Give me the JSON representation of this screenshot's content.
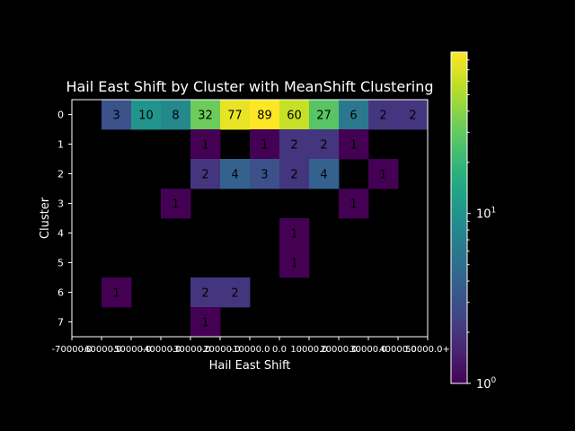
{
  "chart_data": {
    "type": "heatmap",
    "title": "Hail East Shift by Cluster with MeanShift Clustering",
    "xlabel": "Hail East Shift",
    "ylabel": "Cluster",
    "x_tick_labels": [
      "-70000.0",
      "-60000.0",
      "-50000.0",
      "-40000.0",
      "-30000.0",
      "-20000.0",
      "-10000.0",
      "0.0",
      "10000.0",
      "20000.0",
      "30000.0",
      "40000.0",
      "50000.0+"
    ],
    "y_tick_labels": [
      "0",
      "1",
      "2",
      "3",
      "4",
      "5",
      "6",
      "7"
    ],
    "colorbar": {
      "scale": "log",
      "min": 1,
      "max": 89,
      "colormap": "viridis",
      "tick_labels": [
        "10^0",
        "10^1"
      ]
    },
    "annotation_color": "#000000",
    "values": [
      [
        null,
        3,
        10,
        8,
        32,
        77,
        89,
        60,
        27,
        6,
        2,
        2
      ],
      [
        null,
        null,
        null,
        null,
        1,
        null,
        1,
        2,
        2,
        1,
        null,
        null
      ],
      [
        null,
        null,
        null,
        null,
        2,
        4,
        3,
        2,
        4,
        null,
        1,
        null
      ],
      [
        null,
        null,
        null,
        1,
        null,
        null,
        null,
        null,
        null,
        1,
        null,
        null
      ],
      [
        null,
        null,
        null,
        null,
        null,
        null,
        null,
        1,
        null,
        null,
        null,
        null
      ],
      [
        null,
        null,
        null,
        null,
        null,
        null,
        null,
        1,
        null,
        null,
        null,
        null
      ],
      [
        null,
        1,
        null,
        null,
        2,
        2,
        null,
        null,
        null,
        null,
        null,
        null
      ],
      [
        null,
        null,
        null,
        null,
        1,
        null,
        null,
        null,
        null,
        null,
        null,
        null
      ]
    ]
  }
}
